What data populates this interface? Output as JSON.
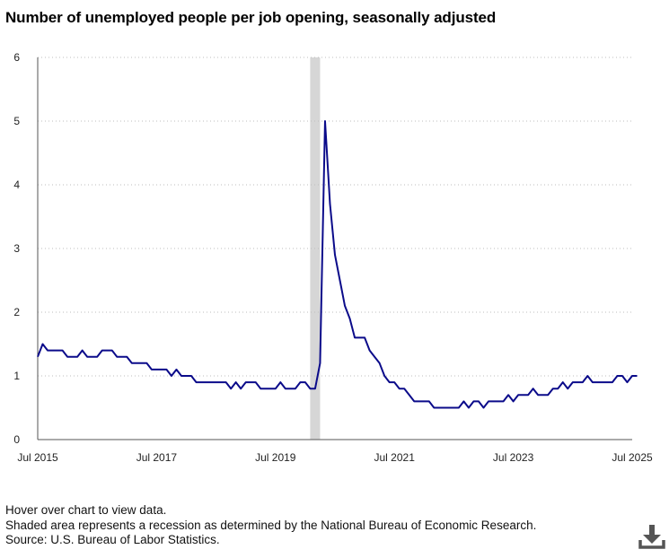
{
  "title": "Number of unemployed people per job opening, seasonally adjusted",
  "notes": {
    "hover": "Hover over chart to view data.",
    "recession": "Shaded area represents a recession as determined by the National Bureau of Economic Research.",
    "source": "Source: U.S. Bureau of Labor Statistics."
  },
  "icons": {
    "download": "download-icon"
  },
  "colors": {
    "line": "#0b0b8a",
    "recession": "#d6d6d6",
    "grid": "#bdbdbd",
    "axis": "#555555"
  },
  "chart_data": {
    "type": "line",
    "title": "Number of unemployed people per job opening, seasonally adjusted",
    "xlabel": "",
    "ylabel": "",
    "ylim": [
      0,
      6
    ],
    "yticks": [
      0,
      1,
      2,
      3,
      4,
      5,
      6
    ],
    "xticks": [
      "Jul 2015",
      "Jul 2017",
      "Jul 2019",
      "Jul 2021",
      "Jul 2023",
      "Jul 2025"
    ],
    "x_start": "2015-07",
    "x_end": "2025-07",
    "frequency": "monthly",
    "grid": "horizontal dotted",
    "legend": "none",
    "recession_shading": {
      "start": "2020-02",
      "end": "2020-04"
    },
    "series": [
      {
        "values": [
          1.3,
          1.5,
          1.4,
          1.4,
          1.4,
          1.4,
          1.3,
          1.3,
          1.3,
          1.4,
          1.3,
          1.3,
          1.3,
          1.4,
          1.4,
          1.4,
          1.3,
          1.3,
          1.3,
          1.2,
          1.2,
          1.2,
          1.2,
          1.1,
          1.1,
          1.1,
          1.1,
          1.0,
          1.1,
          1.0,
          1.0,
          1.0,
          0.9,
          0.9,
          0.9,
          0.9,
          0.9,
          0.9,
          0.9,
          0.8,
          0.9,
          0.8,
          0.9,
          0.9,
          0.9,
          0.8,
          0.8,
          0.8,
          0.8,
          0.9,
          0.8,
          0.8,
          0.8,
          0.9,
          0.9,
          0.8,
          0.8,
          1.2,
          5.0,
          3.7,
          2.9,
          2.5,
          2.1,
          1.9,
          1.6,
          1.6,
          1.6,
          1.4,
          1.3,
          1.2,
          1.0,
          0.9,
          0.9,
          0.8,
          0.8,
          0.7,
          0.6,
          0.6,
          0.6,
          0.6,
          0.5,
          0.5,
          0.5,
          0.5,
          0.5,
          0.5,
          0.6,
          0.5,
          0.6,
          0.6,
          0.5,
          0.6,
          0.6,
          0.6,
          0.6,
          0.7,
          0.6,
          0.7,
          0.7,
          0.7,
          0.8,
          0.7,
          0.7,
          0.7,
          0.8,
          0.8,
          0.9,
          0.8,
          0.9,
          0.9,
          0.9,
          1.0,
          0.9,
          0.9,
          0.9,
          0.9,
          0.9,
          1.0,
          1.0,
          0.9,
          1.0,
          1.0
        ]
      }
    ]
  }
}
